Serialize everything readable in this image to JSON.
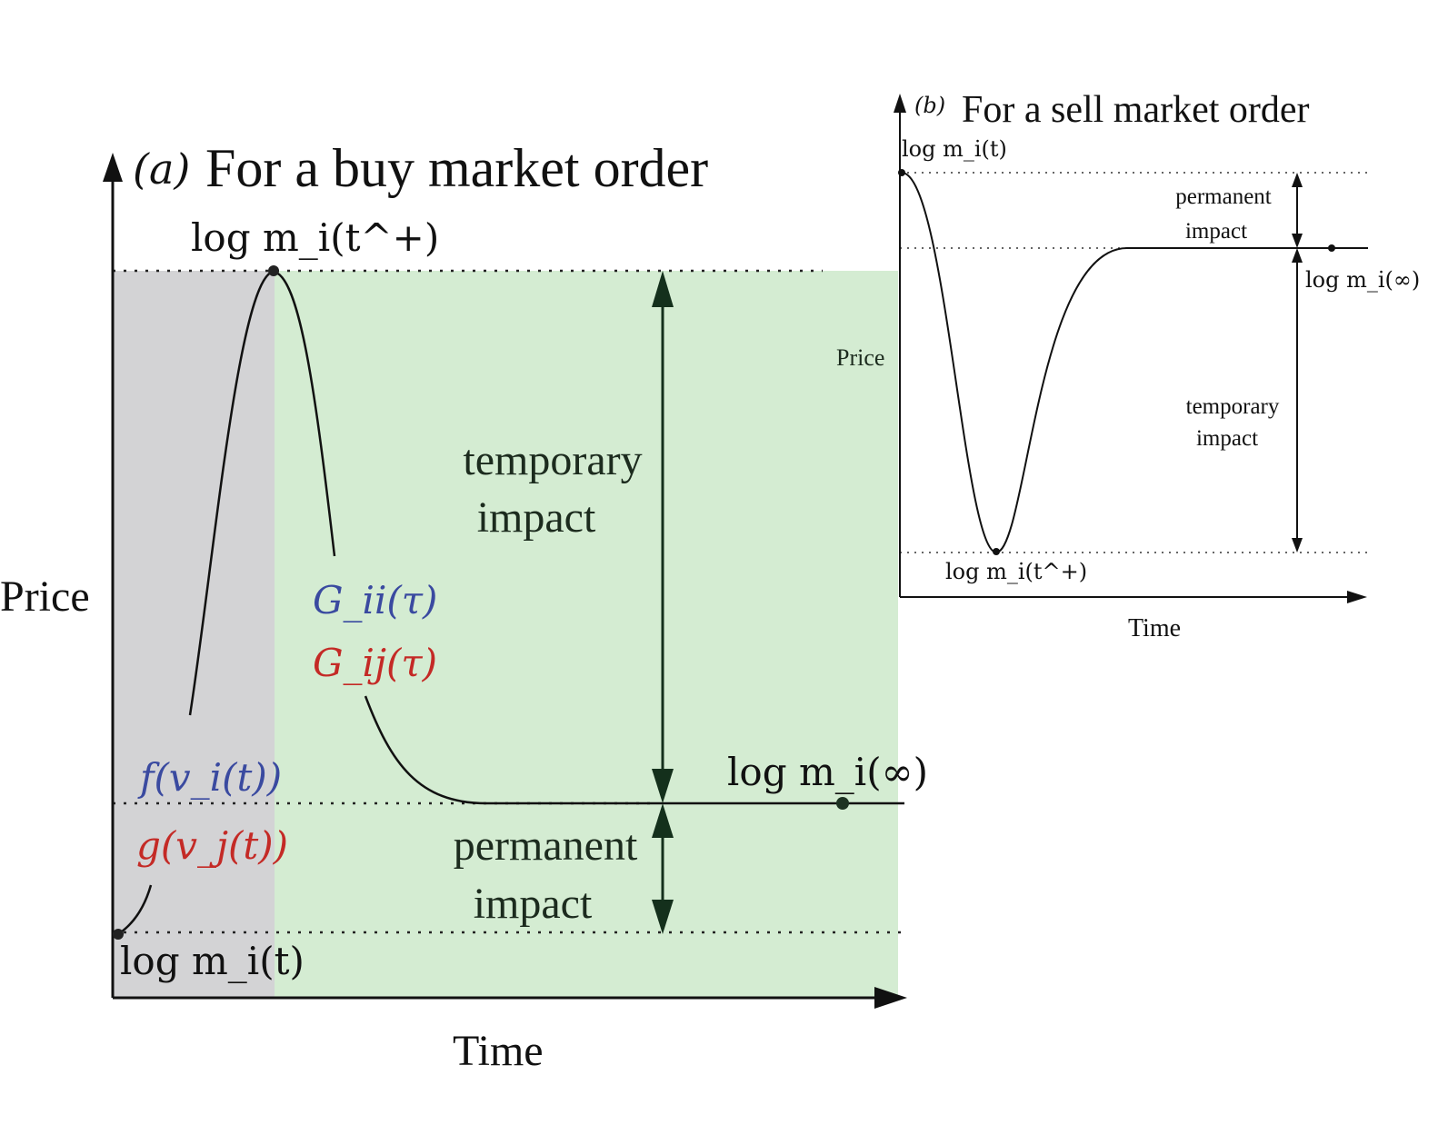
{
  "panel_a": {
    "label": "(a)",
    "title": "For a buy market order",
    "y_axis_label": "Price",
    "x_axis_label": "Time",
    "peak_label": "log m_i(t^+)",
    "start_label": "log m_i(t)",
    "end_label": "log m_i(∞)",
    "temporary_label_line1": "temporary",
    "temporary_label_line2": "impact",
    "permanent_label_line1": "permanent",
    "permanent_label_line2": "impact",
    "kernel_self": "G_ii(τ)",
    "kernel_cross": "G_ij(τ)",
    "func_self": "f(v_i(t))",
    "func_cross": "g(v_j(t))"
  },
  "panel_b": {
    "label": "(b)",
    "title": "For a sell market order",
    "y_axis_label": "Price",
    "x_axis_label": "Time",
    "start_label": "log m_i(t)",
    "trough_label": "log m_i(t^+)",
    "end_label": "log m_i(∞)",
    "permanent_label_line1": "permanent",
    "permanent_label_line2": "impact",
    "temporary_label_line1": "temporary",
    "temporary_label_line2": "impact"
  },
  "colors": {
    "shade_gray": "#d3d3d5",
    "shade_green": "#d4ecd2",
    "self_blue": "#3a4aa0",
    "cross_red": "#c42a26",
    "dark_arrow": "#14301c",
    "ink": "#111111"
  }
}
